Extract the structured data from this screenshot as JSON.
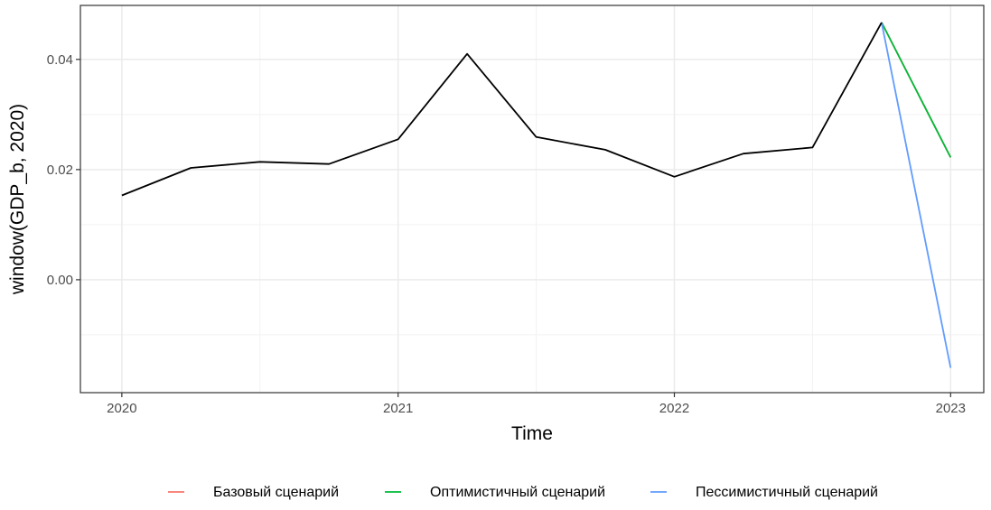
{
  "chart_data": {
    "type": "line",
    "xlabel": "Time",
    "ylabel": "window(GDP_b, 2020)",
    "xlim": [
      2019.85,
      2023.12
    ],
    "ylim": [
      -0.0205,
      0.0498
    ],
    "x_ticks": [
      {
        "value": 2020,
        "label": "2020"
      },
      {
        "value": 2021,
        "label": "2021"
      },
      {
        "value": 2022,
        "label": "2022"
      },
      {
        "value": 2023,
        "label": "2023"
      }
    ],
    "y_ticks": [
      {
        "value": 0.0,
        "label": "0.00"
      },
      {
        "value": 0.02,
        "label": "0.02"
      },
      {
        "value": 0.04,
        "label": "0.04"
      }
    ],
    "y_minor": [
      -0.01,
      0.01,
      0.03
    ],
    "grid": true,
    "legend_position": "bottom",
    "history": {
      "color": "#000000",
      "x": [
        2020.0,
        2020.25,
        2020.5,
        2020.75,
        2021.0,
        2021.25,
        2021.5,
        2021.75,
        2022.0,
        2022.25,
        2022.5,
        2022.75
      ],
      "y": [
        0.0153,
        0.0203,
        0.0214,
        0.021,
        0.0255,
        0.041,
        0.0259,
        0.0236,
        0.0187,
        0.0229,
        0.024,
        0.0467
      ]
    },
    "series": [
      {
        "name": "Базовый сценарий",
        "color": "#F8766D",
        "x": [
          2022.75,
          2023.0
        ],
        "y": [
          0.0467,
          0.0222
        ]
      },
      {
        "name": "Оптимистичный сценарий",
        "color": "#00BA38",
        "x": [
          2022.75,
          2023.0
        ],
        "y": [
          0.0467,
          0.0222
        ]
      },
      {
        "name": "Пессимистичный сценарий",
        "color": "#619CFF",
        "x": [
          2022.75,
          2023.0
        ],
        "y": [
          0.0467,
          -0.016
        ]
      }
    ]
  }
}
